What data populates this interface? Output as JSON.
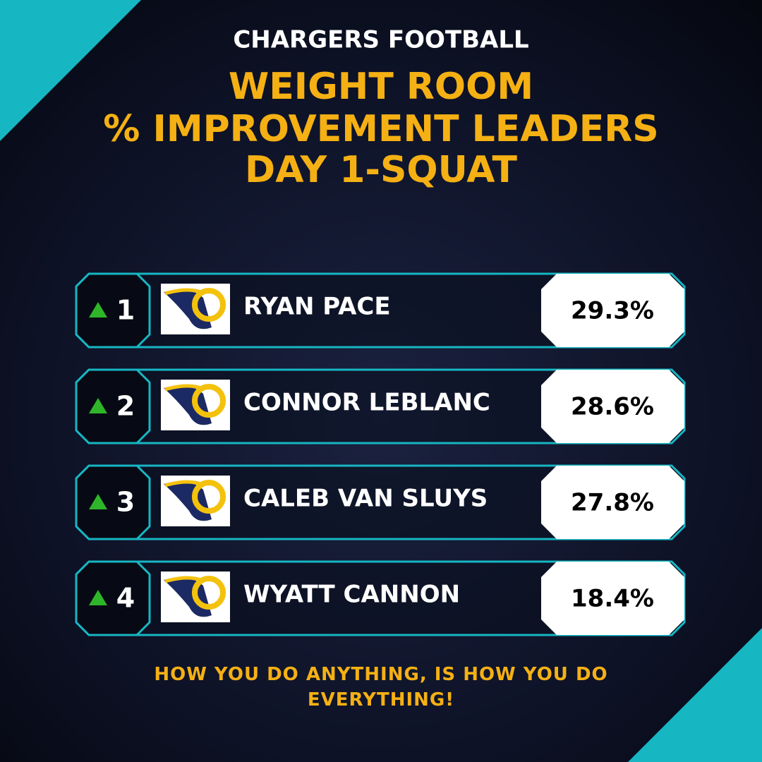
{
  "header": {
    "org": "CHARGERS FOOTBALL",
    "title": [
      "WEIGHT ROOM",
      "% IMPROVEMENT LEADERS",
      "DAY 1-SQUAT"
    ]
  },
  "leaders": [
    {
      "rank": "1",
      "name": "RYAN PACE",
      "value": "29.3%"
    },
    {
      "rank": "2",
      "name": "CONNOR LEBLANC",
      "value": "28.6%"
    },
    {
      "rank": "3",
      "name": "CALEB VAN SLUYS",
      "value": "27.8%"
    },
    {
      "rank": "4",
      "name": "WYATT CANNON",
      "value": "18.4%"
    }
  ],
  "footer": "HOW YOU DO ANYTHING, IS HOW YOU DO EVERYTHING!"
}
